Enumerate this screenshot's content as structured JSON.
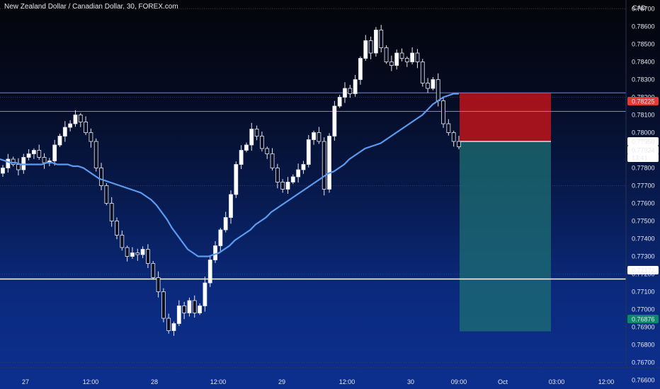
{
  "header": {
    "symbol_title": "New Zealand Dollar / Canadian Dollar, 30, FOREX.com",
    "currency": "CAD"
  },
  "chart_data": {
    "type": "candlestick",
    "y_axis": {
      "ticks": [
        "0.78700",
        "0.78600",
        "0.78500",
        "0.78400",
        "0.78300",
        "0.78200",
        "0.78100",
        "0.78000",
        "0.77900",
        "0.77800",
        "0.77700",
        "0.77600",
        "0.77500",
        "0.77400",
        "0.77300",
        "0.77200",
        "0.77100",
        "0.77000",
        "0.76900",
        "0.76800",
        "0.76700",
        "0.76600"
      ],
      "range": [
        0.7655,
        0.7875
      ],
      "position": "right"
    },
    "x_axis": {
      "ticks": [
        "27",
        "12:00",
        "28",
        "12:00",
        "29",
        "12:00",
        "30",
        "09:00",
        "Oct",
        "03:00",
        "12:00"
      ]
    },
    "horizontal_lines": [
      {
        "price": 0.78225,
        "color": "#5b8cff"
      },
      {
        "price": 0.7812,
        "color": "#5b8cff"
      },
      {
        "price": 0.77172,
        "color": "#ffffff"
      }
    ],
    "price_labels": [
      {
        "text": "0.78225",
        "price": 0.78225,
        "bg": "#e53935",
        "fg": "#ffffff"
      },
      {
        "text": "0.77950",
        "price": 0.7795,
        "bg": "#ffffff",
        "fg": "#131722"
      },
      {
        "text": "0.77924",
        "price": 0.77924,
        "bg": "#ffffff",
        "fg": "#131722"
      },
      {
        "text": "13:41",
        "price": 0.77882,
        "bg": "#ffffff",
        "fg": "#131722"
      },
      {
        "text": "0.77172",
        "price": 0.77172,
        "bg": "#ffffff",
        "fg": "#131722"
      },
      {
        "text": "0.76876",
        "price": 0.76876,
        "bg": "#0a8a6a",
        "fg": "#ffffff"
      }
    ],
    "position_tool": {
      "entry": 0.7795,
      "stop": 0.78225,
      "target": 0.76876,
      "stop_color": "#c0141b",
      "target_color": "#1e6f73"
    },
    "moving_average": {
      "color": "#5b9bf0",
      "values": [
        0.7785,
        0.7784,
        0.7783,
        0.7783,
        0.7782,
        0.7782,
        0.7782,
        0.7782,
        0.7782,
        0.7783,
        0.7783,
        0.7782,
        0.7782,
        0.7782,
        0.7781,
        0.7781,
        0.778,
        0.7778,
        0.7776,
        0.7774,
        0.7773,
        0.7772,
        0.7771,
        0.777,
        0.7769,
        0.7768,
        0.7767,
        0.7766,
        0.7764,
        0.7762,
        0.7759,
        0.7755,
        0.7751,
        0.7746,
        0.7742,
        0.7738,
        0.7734,
        0.7732,
        0.773,
        0.773,
        0.773,
        0.7731,
        0.7732,
        0.7734,
        0.7736,
        0.7739,
        0.7741,
        0.7743,
        0.7745,
        0.7748,
        0.775,
        0.7752,
        0.7755,
        0.7757,
        0.7759,
        0.7761,
        0.7763,
        0.7765,
        0.7767,
        0.7769,
        0.7771,
        0.7773,
        0.7775,
        0.7777,
        0.7778,
        0.778,
        0.7782,
        0.7785,
        0.7787,
        0.7789,
        0.7791,
        0.7792,
        0.7793,
        0.7794,
        0.7796,
        0.7798,
        0.78,
        0.7802,
        0.7804,
        0.7806,
        0.7808,
        0.781,
        0.7813,
        0.7816,
        0.7818,
        0.782,
        0.7821,
        0.7822,
        0.7822
      ]
    },
    "closes": [
      0.778,
      0.7785,
      0.7782,
      0.7779,
      0.7786,
      0.7788,
      0.779,
      0.7786,
      0.7783,
      0.7784,
      0.7793,
      0.7798,
      0.7803,
      0.7805,
      0.781,
      0.7806,
      0.78,
      0.7795,
      0.778,
      0.777,
      0.776,
      0.775,
      0.7742,
      0.7735,
      0.773,
      0.7732,
      0.7731,
      0.7734,
      0.7726,
      0.7718,
      0.771,
      0.7695,
      0.7688,
      0.7692,
      0.7702,
      0.7698,
      0.7705,
      0.7698,
      0.7702,
      0.7715,
      0.7728,
      0.7736,
      0.7745,
      0.7752,
      0.7765,
      0.7782,
      0.779,
      0.7793,
      0.7802,
      0.7798,
      0.7791,
      0.7788,
      0.778,
      0.7772,
      0.7768,
      0.7772,
      0.7775,
      0.7779,
      0.7782,
      0.7796,
      0.78,
      0.7795,
      0.7768,
      0.7798,
      0.7815,
      0.782,
      0.7825,
      0.7822,
      0.783,
      0.7842,
      0.7852,
      0.7845,
      0.7858,
      0.7848,
      0.784,
      0.7838,
      0.7845,
      0.7842,
      0.784,
      0.7845,
      0.784,
      0.7828,
      0.7825,
      0.783,
      0.7818,
      0.7805,
      0.78,
      0.7795,
      0.7792
    ]
  }
}
